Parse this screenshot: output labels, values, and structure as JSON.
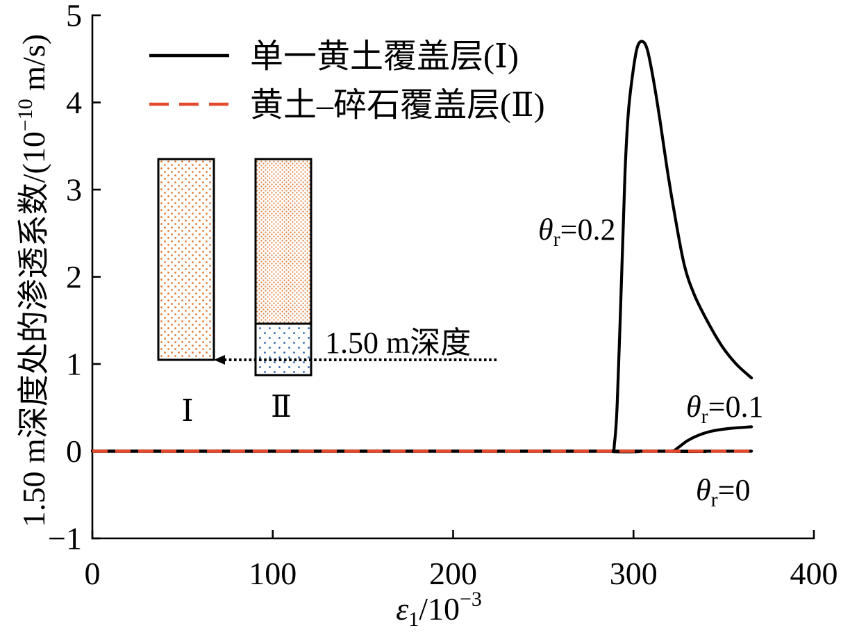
{
  "chart_data": {
    "type": "line",
    "xlabel": {
      "symbol": "ε",
      "sub": "1",
      "text": "/10",
      "sup": "−3"
    },
    "ylabel": {
      "text": "1.50 m深度处的渗透系数/(10",
      "sup": "−10",
      "unit": " m/s)"
    },
    "xlim": [
      0,
      400
    ],
    "ylim": [
      -1,
      5
    ],
    "xticks": [
      0,
      100,
      200,
      300,
      400
    ],
    "xtick_labels": [
      "0",
      "100",
      "200",
      "300",
      "400"
    ],
    "yticks": [
      -1,
      0,
      1,
      2,
      3,
      4,
      5
    ],
    "ytick_labels": [
      "−1",
      "0",
      "1",
      "2",
      "3",
      "4",
      "5"
    ],
    "grid": false,
    "legend": {
      "placement": "top-left"
    },
    "curve_param": {
      "symbol": "θ",
      "sub": "r"
    },
    "series": [
      {
        "name": "单一黄土覆盖层(Ⅰ)",
        "color": "#000000",
        "dashed": false,
        "curves": [
          {
            "label": "=0.2",
            "points": [
              [
                0,
                0
              ],
              [
                280,
                0
              ],
              [
                288,
                0
              ],
              [
                289.5,
                0.1
              ],
              [
                291,
                0.56
              ],
              [
                293.4,
                2.0
              ],
              [
                295.3,
                3.2
              ],
              [
                297.2,
                3.9
              ],
              [
                299.9,
                4.38
              ],
              [
                302.2,
                4.64
              ],
              [
                304.9,
                4.7
              ],
              [
                307.6,
                4.61
              ],
              [
                310.7,
                4.3
              ],
              [
                314.5,
                3.82
              ],
              [
                318.4,
                3.27
              ],
              [
                322.2,
                2.79
              ],
              [
                328,
                2.15
              ],
              [
                333.8,
                1.79
              ],
              [
                341.5,
                1.47
              ],
              [
                349.2,
                1.2
              ],
              [
                356.9,
                1.0
              ],
              [
                365.4,
                0.84
              ]
            ]
          },
          {
            "label": "=0.1",
            "points": [
              [
                0,
                0
              ],
              [
                315,
                0
              ],
              [
                321.5,
                0
              ],
              [
                325.3,
                0.05
              ],
              [
                329.9,
                0.12
              ],
              [
                335.7,
                0.18
              ],
              [
                343.4,
                0.23
              ],
              [
                353,
                0.26
              ],
              [
                365.4,
                0.28
              ]
            ]
          },
          {
            "label": "=0",
            "points": [
              [
                0,
                0
              ],
              [
                365.4,
                0
              ]
            ]
          }
        ]
      },
      {
        "name": "黄土–碎石覆盖层(Ⅱ)",
        "color": "#e3492d",
        "dashed": true,
        "curves": [
          {
            "points": [
              [
                0,
                0
              ],
              [
                365.4,
                0
              ]
            ]
          }
        ]
      }
    ]
  },
  "inset": {
    "column_labels": [
      "Ⅰ",
      "Ⅱ"
    ],
    "depth_label": "1.50 m深度",
    "colors": {
      "loess_dots": "#e07b3a",
      "gravel_dots": "#2f62b3"
    }
  }
}
